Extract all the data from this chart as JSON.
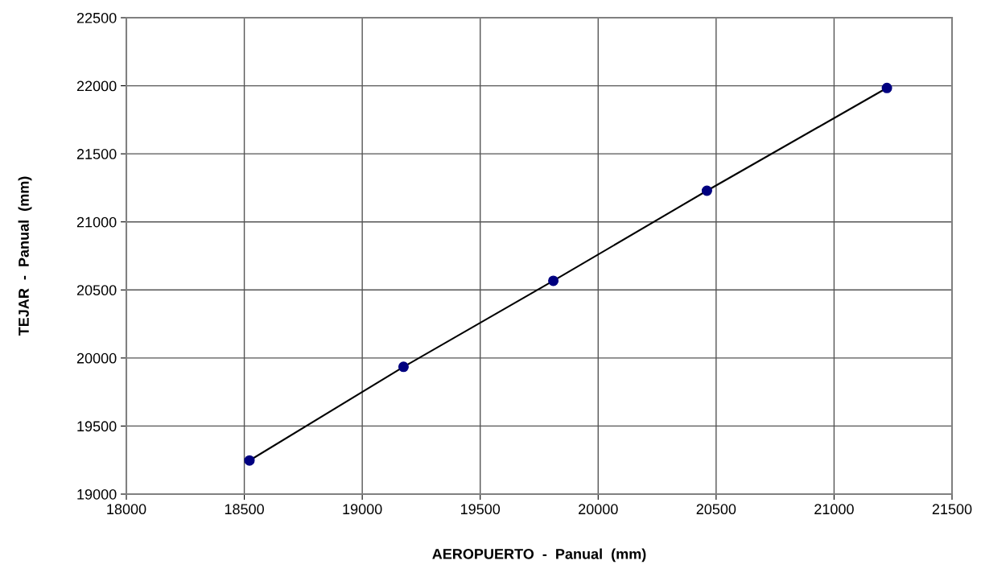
{
  "chart_data": {
    "type": "line",
    "xlabel": "AEROPUERTO  -  Panual  (mm)",
    "ylabel": "TEJAR  -  Panual  (mm)",
    "series": [
      {
        "color": "#000080",
        "x": [
          18522,
          19175,
          19810,
          20461,
          21224
        ],
        "values": [
          19247,
          19935,
          20567,
          21229,
          21984
        ]
      }
    ],
    "marker": "circle",
    "grid": true,
    "legend": false,
    "xlim": [
      18000,
      21500
    ],
    "xticks": [
      18000,
      18500,
      19000,
      19500,
      20000,
      20500,
      21000,
      21500
    ],
    "ylim": [
      19000,
      22500
    ],
    "yticks": [
      19000,
      19500,
      20000,
      20500,
      21000,
      21500,
      22000,
      22500
    ]
  }
}
